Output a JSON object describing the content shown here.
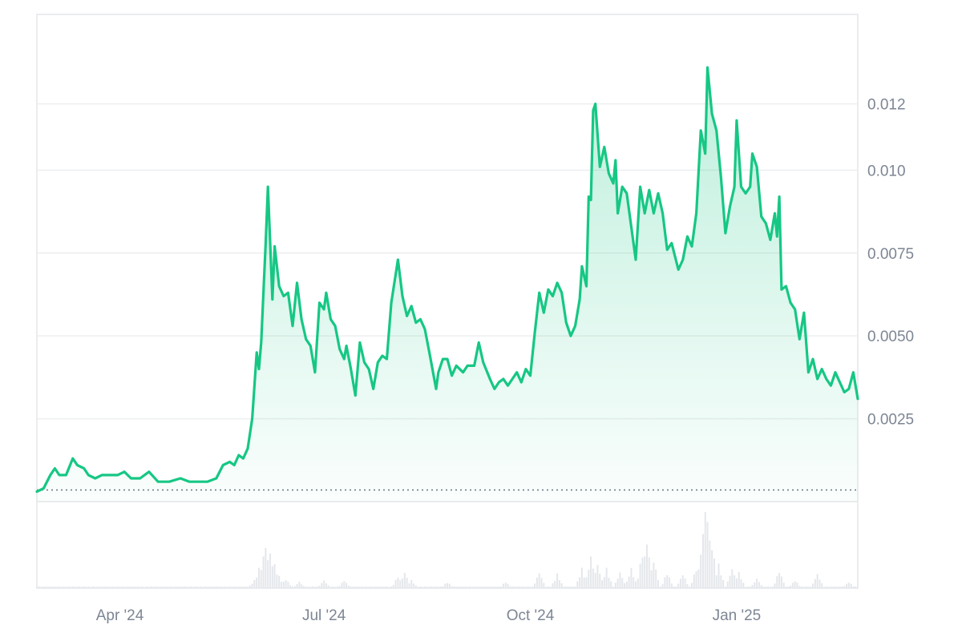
{
  "colors": {
    "line": "#16c784",
    "grid": "#eceef1",
    "axis": "#e3e6ea",
    "label": "#7d8694",
    "volume": "#e4e7eb",
    "baseline": "#6b7280"
  },
  "chart_data": {
    "type": "area",
    "title": "",
    "xlabel": "",
    "ylabel": "",
    "legend": "none",
    "grid": true,
    "ylim": [
      0,
      0.0147
    ],
    "x_ticks": [
      {
        "date": "2024-04-01",
        "label": "Apr '24"
      },
      {
        "date": "2024-07-01",
        "label": "Jul '24"
      },
      {
        "date": "2024-10-01",
        "label": "Oct '24"
      },
      {
        "date": "2025-01-01",
        "label": "Jan '25"
      }
    ],
    "y_ticks": [
      {
        "value": 0.0025,
        "label": "0.0025"
      },
      {
        "value": 0.005,
        "label": "0.0050"
      },
      {
        "value": 0.0075,
        "label": "0.0075"
      },
      {
        "value": 0.01,
        "label": "0.010"
      },
      {
        "value": 0.012,
        "label": "0.012"
      }
    ],
    "baseline_value": 0.00035,
    "series": [
      {
        "values": [
          [
            "2024-02-24",
            0.0003
          ],
          [
            "2024-02-27",
            0.0004
          ],
          [
            "2024-03-01",
            0.0008
          ],
          [
            "2024-03-03",
            0.001
          ],
          [
            "2024-03-05",
            0.0008
          ],
          [
            "2024-03-08",
            0.0008
          ],
          [
            "2024-03-11",
            0.0013
          ],
          [
            "2024-03-13",
            0.0011
          ],
          [
            "2024-03-16",
            0.001
          ],
          [
            "2024-03-18",
            0.0008
          ],
          [
            "2024-03-21",
            0.0007
          ],
          [
            "2024-03-24",
            0.0008
          ],
          [
            "2024-03-27",
            0.0008
          ],
          [
            "2024-03-31",
            0.0008
          ],
          [
            "2024-04-03",
            0.0009
          ],
          [
            "2024-04-06",
            0.0007
          ],
          [
            "2024-04-10",
            0.0007
          ],
          [
            "2024-04-14",
            0.0009
          ],
          [
            "2024-04-18",
            0.0006
          ],
          [
            "2024-04-23",
            0.0006
          ],
          [
            "2024-04-28",
            0.0007
          ],
          [
            "2024-05-02",
            0.0006
          ],
          [
            "2024-05-06",
            0.0006
          ],
          [
            "2024-05-10",
            0.0006
          ],
          [
            "2024-05-14",
            0.0007
          ],
          [
            "2024-05-17",
            0.0011
          ],
          [
            "2024-05-20",
            0.0012
          ],
          [
            "2024-05-22",
            0.0011
          ],
          [
            "2024-05-24",
            0.0014
          ],
          [
            "2024-05-26",
            0.0013
          ],
          [
            "2024-05-28",
            0.0016
          ],
          [
            "2024-05-30",
            0.0025
          ],
          [
            "2024-06-01",
            0.0045
          ],
          [
            "2024-06-02",
            0.004
          ],
          [
            "2024-06-03",
            0.0048
          ],
          [
            "2024-06-05",
            0.0078
          ],
          [
            "2024-06-06",
            0.0095
          ],
          [
            "2024-06-08",
            0.0061
          ],
          [
            "2024-06-09",
            0.0077
          ],
          [
            "2024-06-11",
            0.0065
          ],
          [
            "2024-06-13",
            0.0062
          ],
          [
            "2024-06-15",
            0.0063
          ],
          [
            "2024-06-17",
            0.0053
          ],
          [
            "2024-06-19",
            0.0066
          ],
          [
            "2024-06-21",
            0.0055
          ],
          [
            "2024-06-23",
            0.0049
          ],
          [
            "2024-06-25",
            0.0047
          ],
          [
            "2024-06-27",
            0.0039
          ],
          [
            "2024-06-29",
            0.006
          ],
          [
            "2024-07-01",
            0.0058
          ],
          [
            "2024-07-02",
            0.0063
          ],
          [
            "2024-07-04",
            0.0055
          ],
          [
            "2024-07-06",
            0.0053
          ],
          [
            "2024-07-08",
            0.0046
          ],
          [
            "2024-07-10",
            0.0043
          ],
          [
            "2024-07-11",
            0.0047
          ],
          [
            "2024-07-13",
            0.004
          ],
          [
            "2024-07-15",
            0.0032
          ],
          [
            "2024-07-17",
            0.0048
          ],
          [
            "2024-07-19",
            0.0042
          ],
          [
            "2024-07-21",
            0.004
          ],
          [
            "2024-07-23",
            0.0034
          ],
          [
            "2024-07-25",
            0.0042
          ],
          [
            "2024-07-27",
            0.0044
          ],
          [
            "2024-07-29",
            0.0043
          ],
          [
            "2024-07-31",
            0.006
          ],
          [
            "2024-08-03",
            0.0073
          ],
          [
            "2024-08-05",
            0.0062
          ],
          [
            "2024-08-07",
            0.0056
          ],
          [
            "2024-08-09",
            0.0059
          ],
          [
            "2024-08-11",
            0.0054
          ],
          [
            "2024-08-13",
            0.0055
          ],
          [
            "2024-08-15",
            0.0052
          ],
          [
            "2024-08-17",
            0.0045
          ],
          [
            "2024-08-20",
            0.0034
          ],
          [
            "2024-08-21",
            0.0039
          ],
          [
            "2024-08-23",
            0.0043
          ],
          [
            "2024-08-25",
            0.0043
          ],
          [
            "2024-08-27",
            0.0038
          ],
          [
            "2024-08-29",
            0.0041
          ],
          [
            "2024-09-01",
            0.0039
          ],
          [
            "2024-09-03",
            0.0041
          ],
          [
            "2024-09-06",
            0.0041
          ],
          [
            "2024-09-08",
            0.0048
          ],
          [
            "2024-09-10",
            0.0042
          ],
          [
            "2024-09-13",
            0.0037
          ],
          [
            "2024-09-15",
            0.0034
          ],
          [
            "2024-09-17",
            0.0036
          ],
          [
            "2024-09-19",
            0.0037
          ],
          [
            "2024-09-21",
            0.0035
          ],
          [
            "2024-09-23",
            0.0037
          ],
          [
            "2024-09-25",
            0.0039
          ],
          [
            "2024-09-27",
            0.0036
          ],
          [
            "2024-09-29",
            0.004
          ],
          [
            "2024-10-01",
            0.0038
          ],
          [
            "2024-10-03",
            0.0051
          ],
          [
            "2024-10-05",
            0.0063
          ],
          [
            "2024-10-07",
            0.0057
          ],
          [
            "2024-10-09",
            0.0064
          ],
          [
            "2024-10-11",
            0.0062
          ],
          [
            "2024-10-13",
            0.0066
          ],
          [
            "2024-10-15",
            0.0063
          ],
          [
            "2024-10-17",
            0.0054
          ],
          [
            "2024-10-19",
            0.005
          ],
          [
            "2024-10-21",
            0.0053
          ],
          [
            "2024-10-23",
            0.0061
          ],
          [
            "2024-10-24",
            0.0071
          ],
          [
            "2024-10-26",
            0.0065
          ],
          [
            "2024-10-27",
            0.0092
          ],
          [
            "2024-10-28",
            0.0091
          ],
          [
            "2024-10-29",
            0.0118
          ],
          [
            "2024-10-30",
            0.012
          ],
          [
            "2024-11-01",
            0.0101
          ],
          [
            "2024-11-03",
            0.0107
          ],
          [
            "2024-11-05",
            0.0099
          ],
          [
            "2024-11-07",
            0.0096
          ],
          [
            "2024-11-08",
            0.0103
          ],
          [
            "2024-11-09",
            0.0087
          ],
          [
            "2024-11-11",
            0.0095
          ],
          [
            "2024-11-13",
            0.0093
          ],
          [
            "2024-11-15",
            0.0083
          ],
          [
            "2024-11-17",
            0.0073
          ],
          [
            "2024-11-19",
            0.0095
          ],
          [
            "2024-11-21",
            0.0087
          ],
          [
            "2024-11-23",
            0.0094
          ],
          [
            "2024-11-25",
            0.0087
          ],
          [
            "2024-11-27",
            0.0093
          ],
          [
            "2024-11-29",
            0.0087
          ],
          [
            "2024-12-01",
            0.0076
          ],
          [
            "2024-12-03",
            0.0078
          ],
          [
            "2024-12-06",
            0.007
          ],
          [
            "2024-12-08",
            0.0073
          ],
          [
            "2024-12-10",
            0.008
          ],
          [
            "2024-12-12",
            0.0077
          ],
          [
            "2024-12-14",
            0.0087
          ],
          [
            "2024-12-16",
            0.0112
          ],
          [
            "2024-12-18",
            0.0105
          ],
          [
            "2024-12-19",
            0.0131
          ],
          [
            "2024-12-21",
            0.0117
          ],
          [
            "2024-12-23",
            0.0112
          ],
          [
            "2024-12-25",
            0.0098
          ],
          [
            "2024-12-27",
            0.0081
          ],
          [
            "2024-12-29",
            0.0089
          ],
          [
            "2024-12-31",
            0.0095
          ],
          [
            "2025-01-01",
            0.0115
          ],
          [
            "2025-01-03",
            0.0095
          ],
          [
            "2025-01-05",
            0.0093
          ],
          [
            "2025-01-07",
            0.0095
          ],
          [
            "2025-01-08",
            0.0105
          ],
          [
            "2025-01-10",
            0.0101
          ],
          [
            "2025-01-12",
            0.0086
          ],
          [
            "2025-01-14",
            0.0084
          ],
          [
            "2025-01-16",
            0.0079
          ],
          [
            "2025-01-18",
            0.0087
          ],
          [
            "2025-01-19",
            0.008
          ],
          [
            "2025-01-20",
            0.0092
          ],
          [
            "2025-01-21",
            0.0064
          ],
          [
            "2025-01-23",
            0.0065
          ],
          [
            "2025-01-25",
            0.006
          ],
          [
            "2025-01-27",
            0.0058
          ],
          [
            "2025-01-29",
            0.0049
          ],
          [
            "2025-01-31",
            0.0057
          ],
          [
            "2025-02-02",
            0.0039
          ],
          [
            "2025-02-04",
            0.0043
          ],
          [
            "2025-02-06",
            0.0037
          ],
          [
            "2025-02-08",
            0.004
          ],
          [
            "2025-02-10",
            0.0037
          ],
          [
            "2025-02-12",
            0.0035
          ],
          [
            "2025-02-14",
            0.0039
          ],
          [
            "2025-02-16",
            0.0036
          ],
          [
            "2025-02-18",
            0.0033
          ],
          [
            "2025-02-20",
            0.0034
          ],
          [
            "2025-02-22",
            0.0039
          ],
          [
            "2025-02-24",
            0.0031
          ]
        ]
      }
    ],
    "volume": [
      [
        "2024-05-31",
        0.1
      ],
      [
        "2024-06-02",
        0.25
      ],
      [
        "2024-06-04",
        0.4
      ],
      [
        "2024-06-05",
        0.55
      ],
      [
        "2024-06-07",
        0.45
      ],
      [
        "2024-06-09",
        0.3
      ],
      [
        "2024-06-11",
        0.15
      ],
      [
        "2024-06-14",
        0.12
      ],
      [
        "2024-06-20",
        0.08
      ],
      [
        "2024-07-01",
        0.1
      ],
      [
        "2024-07-10",
        0.1
      ],
      [
        "2024-08-03",
        0.15
      ],
      [
        "2024-08-06",
        0.2
      ],
      [
        "2024-08-09",
        0.1
      ],
      [
        "2024-08-25",
        0.08
      ],
      [
        "2024-09-20",
        0.08
      ],
      [
        "2024-10-05",
        0.2
      ],
      [
        "2024-10-13",
        0.18
      ],
      [
        "2024-10-24",
        0.25
      ],
      [
        "2024-10-28",
        0.4
      ],
      [
        "2024-10-31",
        0.3
      ],
      [
        "2024-11-04",
        0.25
      ],
      [
        "2024-11-10",
        0.2
      ],
      [
        "2024-11-15",
        0.25
      ],
      [
        "2024-11-20",
        0.45
      ],
      [
        "2024-11-22",
        0.6
      ],
      [
        "2024-11-25",
        0.35
      ],
      [
        "2024-12-01",
        0.2
      ],
      [
        "2024-12-08",
        0.18
      ],
      [
        "2024-12-14",
        0.25
      ],
      [
        "2024-12-17",
        0.7
      ],
      [
        "2024-12-18",
        1.0
      ],
      [
        "2024-12-19",
        0.9
      ],
      [
        "2024-12-21",
        0.55
      ],
      [
        "2024-12-24",
        0.3
      ],
      [
        "2024-12-30",
        0.25
      ],
      [
        "2025-01-02",
        0.2
      ],
      [
        "2025-01-10",
        0.12
      ],
      [
        "2025-01-20",
        0.22
      ],
      [
        "2025-01-27",
        0.1
      ],
      [
        "2025-02-06",
        0.18
      ],
      [
        "2025-02-20",
        0.08
      ]
    ]
  }
}
